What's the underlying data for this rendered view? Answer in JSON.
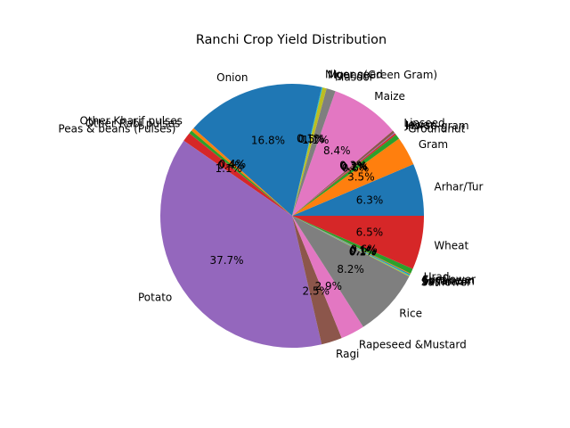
{
  "chart_data": {
    "type": "pie",
    "title": "Ranchi Crop Yield Distribution",
    "start_angle_deg": 0,
    "direction": "counterclockwise",
    "slices": [
      {
        "label": "Arhar/Tur",
        "value": 6.3,
        "pct_label": "6.3%",
        "color": "#1f77b4"
      },
      {
        "label": "Gram",
        "value": 3.5,
        "pct_label": "3.5%",
        "color": "#ff7f0e"
      },
      {
        "label": "Groundnut",
        "value": 0.6,
        "pct_label": "0.6%",
        "color": "#2ca02c"
      },
      {
        "label": "Horse-gram",
        "value": 0.2,
        "pct_label": "0.2%",
        "color": "#d62728"
      },
      {
        "label": "Jowar",
        "value": 0.1,
        "pct_label": "0.1%",
        "color": "#9467bd"
      },
      {
        "label": "Linseed",
        "value": 0.3,
        "pct_label": "0.3%",
        "color": "#8c564b"
      },
      {
        "label": "Maize",
        "value": 8.4,
        "pct_label": "8.4%",
        "color": "#e377c2"
      },
      {
        "label": "Masoor",
        "value": 1.1,
        "pct_label": "1.1%",
        "color": "#7f7f7f"
      },
      {
        "label": "Moong(Green Gram)",
        "value": 0.5,
        "pct_label": "0.5%",
        "color": "#bcbd22"
      },
      {
        "label": "Niger seed",
        "value": 0.1,
        "pct_label": "0.1%",
        "color": "#17becf"
      },
      {
        "label": "Onion",
        "value": 16.8,
        "pct_label": "16.8%",
        "color": "#1f77b4"
      },
      {
        "label": "Other Kharif pulses",
        "value": 0.4,
        "pct_label": "0.4%",
        "color": "#ff7f0e"
      },
      {
        "label": "Other Rabi pulses",
        "value": 0.4,
        "pct_label": "0.4%",
        "color": "#2ca02c"
      },
      {
        "label": "Peas & beans (Pulses)",
        "value": 1.1,
        "pct_label": "1.1%",
        "color": "#d62728"
      },
      {
        "label": "Potato",
        "value": 37.7,
        "pct_label": "37.7%",
        "color": "#9467bd"
      },
      {
        "label": "Ragi",
        "value": 2.5,
        "pct_label": "2.5%",
        "color": "#8c564b"
      },
      {
        "label": "Rapeseed &Mustard",
        "value": 2.9,
        "pct_label": "2.9%",
        "color": "#e377c2"
      },
      {
        "label": "Rice",
        "value": 8.2,
        "pct_label": "8.2%",
        "color": "#7f7f7f"
      },
      {
        "label": "Safflower",
        "value": 0.1,
        "pct_label": "0.1%",
        "color": "#bcbd22"
      },
      {
        "label": "Sesamum",
        "value": 0.1,
        "pct_label": "0.1%",
        "color": "#17becf"
      },
      {
        "label": "Soyabean",
        "value": 0.1,
        "pct_label": "0.1%",
        "color": "#1f77b4"
      },
      {
        "label": "Sunflower",
        "value": 0.1,
        "pct_label": "0.1%",
        "color": "#ff7f0e"
      },
      {
        "label": "Urad",
        "value": 0.6,
        "pct_label": "0.6%",
        "color": "#2ca02c"
      },
      {
        "label": "Wheat",
        "value": 6.5,
        "pct_label": "6.5%",
        "color": "#d62728"
      }
    ]
  }
}
